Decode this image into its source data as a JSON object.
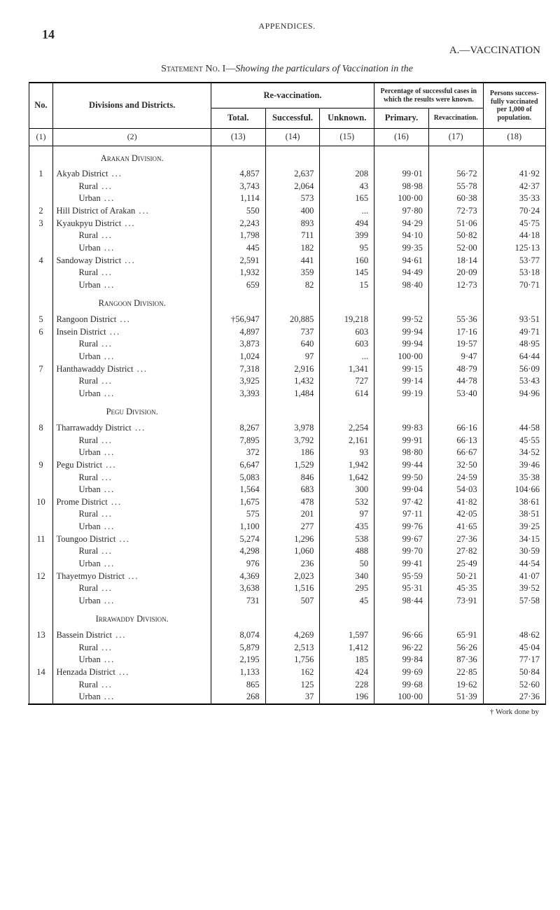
{
  "page_number": "14",
  "running_head": "APPENDICES.",
  "main_heading": "A.—VACCINATION",
  "statement_prefix": "Statement No. I—",
  "statement_italic": "Showing the particulars of Vaccination in the",
  "header": {
    "no": "No.",
    "divisions": "Divisions and Districts.",
    "revacc": "Re-vaccination.",
    "total": "Total.",
    "successful": "Successful.",
    "unknown": "Unknown.",
    "pct_group": "Percentage of suc­cessful cases in which the results were known.",
    "primary": "Primary.",
    "re_vacc": "Re­vaccina­tion.",
    "persons": "Persons success­fully vacci­nated per 1,000 of popula­tion."
  },
  "colnums": [
    "(1)",
    "(2)",
    "(13)",
    "(14)",
    "(15)",
    "(16)",
    "(17)",
    "(18)"
  ],
  "sections": [
    {
      "title": "Arakan Division.",
      "rows": [
        {
          "no": "1",
          "name": "Akyab District",
          "indent": 0,
          "c": [
            "4,857",
            "2,637",
            "208",
            "99·01",
            "56·72",
            "41·92"
          ]
        },
        {
          "no": "",
          "name": "Rural",
          "indent": 2,
          "c": [
            "3,743",
            "2,064",
            "43",
            "98·98",
            "55·78",
            "42·37"
          ]
        },
        {
          "no": "",
          "name": "Urban",
          "indent": 2,
          "c": [
            "1,114",
            "573",
            "165",
            "100·00",
            "60·38",
            "35·33"
          ]
        },
        {
          "no": "2",
          "name": "Hill District of Arakan",
          "indent": 0,
          "c": [
            "550",
            "400",
            "...",
            "97·80",
            "72·73",
            "70·24"
          ]
        },
        {
          "no": "3",
          "name": "Kyaukpyu District",
          "indent": 0,
          "c": [
            "2,243",
            "893",
            "494",
            "94·29",
            "51·06",
            "45·75"
          ]
        },
        {
          "no": "",
          "name": "Rural",
          "indent": 2,
          "c": [
            "1,798",
            "711",
            "399",
            "94·10",
            "50·82",
            "44·18"
          ]
        },
        {
          "no": "",
          "name": "Urban",
          "indent": 2,
          "c": [
            "445",
            "182",
            "95",
            "99·35",
            "52·00",
            "125·13"
          ]
        },
        {
          "no": "4",
          "name": "Sandoway District",
          "indent": 0,
          "c": [
            "2,591",
            "441",
            "160",
            "94·61",
            "18·14",
            "53·77"
          ]
        },
        {
          "no": "",
          "name": "Rural",
          "indent": 2,
          "c": [
            "1,932",
            "359",
            "145",
            "94·49",
            "20·09",
            "53·18"
          ]
        },
        {
          "no": "",
          "name": "Urban",
          "indent": 2,
          "c": [
            "659",
            "82",
            "15",
            "98·40",
            "12·73",
            "70·71"
          ]
        }
      ]
    },
    {
      "title": "Rangoon Division.",
      "rows": [
        {
          "no": "5",
          "name": "Rangoon District",
          "indent": 0,
          "c": [
            "†56,947",
            "20,885",
            "19,218",
            "99·52",
            "55·36",
            "93·51"
          ]
        },
        {
          "no": "6",
          "name": "Insein District",
          "indent": 0,
          "c": [
            "4,897",
            "737",
            "603",
            "99·94",
            "17·16",
            "49·71"
          ]
        },
        {
          "no": "",
          "name": "Rural",
          "indent": 2,
          "c": [
            "3,873",
            "640",
            "603",
            "99·94",
            "19·57",
            "48·95"
          ]
        },
        {
          "no": "",
          "name": "Urban",
          "indent": 2,
          "c": [
            "1,024",
            "97",
            "...",
            "100·00",
            "9·47",
            "64·44"
          ]
        },
        {
          "no": "7",
          "name": "Hanthawaddy District",
          "indent": 0,
          "c": [
            "7,318",
            "2,916",
            "1,341",
            "99·15",
            "48·79",
            "56·09"
          ]
        },
        {
          "no": "",
          "name": "Rural",
          "indent": 2,
          "c": [
            "3,925",
            "1,432",
            "727",
            "99·14",
            "44·78",
            "53·43"
          ]
        },
        {
          "no": "",
          "name": "Urban",
          "indent": 2,
          "c": [
            "3,393",
            "1,484",
            "614",
            "99·19",
            "53·40",
            "94·96"
          ]
        }
      ]
    },
    {
      "title": "Pegu Division.",
      "rows": [
        {
          "no": "8",
          "name": "Tharrawaddy District",
          "indent": 0,
          "c": [
            "8,267",
            "3,978",
            "2,254",
            "99·83",
            "66·16",
            "44·58"
          ]
        },
        {
          "no": "",
          "name": "Rural",
          "indent": 2,
          "c": [
            "7,895",
            "3,792",
            "2,161",
            "99·91",
            "66·13",
            "45·55"
          ]
        },
        {
          "no": "",
          "name": "Urban",
          "indent": 2,
          "c": [
            "372",
            "186",
            "93",
            "98·80",
            "66·67",
            "34·52"
          ]
        },
        {
          "no": "9",
          "name": "Pegu District",
          "indent": 0,
          "c": [
            "6,647",
            "1,529",
            "1,942",
            "99·44",
            "32·50",
            "39·46"
          ]
        },
        {
          "no": "",
          "name": "Rural",
          "indent": 2,
          "c": [
            "5,083",
            "846",
            "1,642",
            "99·50",
            "24·59",
            "35·38"
          ]
        },
        {
          "no": "",
          "name": "Urban",
          "indent": 2,
          "c": [
            "1,564",
            "683",
            "300",
            "99·04",
            "54·03",
            "104·66"
          ]
        },
        {
          "no": "10",
          "name": "Prome District",
          "indent": 0,
          "c": [
            "1,675",
            "478",
            "532",
            "97·42",
            "41·82",
            "38·61"
          ]
        },
        {
          "no": "",
          "name": "Rural",
          "indent": 2,
          "c": [
            "575",
            "201",
            "97",
            "97·11",
            "42·05",
            "38·51"
          ]
        },
        {
          "no": "",
          "name": "Urban",
          "indent": 2,
          "c": [
            "1,100",
            "277",
            "435",
            "99·76",
            "41·65",
            "39·25"
          ]
        },
        {
          "no": "11",
          "name": "Toungoo District",
          "indent": 0,
          "c": [
            "5,274",
            "1,296",
            "538",
            "99·67",
            "27·36",
            "34·15"
          ]
        },
        {
          "no": "",
          "name": "Rural",
          "indent": 2,
          "c": [
            "4,298",
            "1,060",
            "488",
            "99·70",
            "27·82",
            "30·59"
          ]
        },
        {
          "no": "",
          "name": "Urban",
          "indent": 2,
          "c": [
            "976",
            "236",
            "50",
            "99·41",
            "25·49",
            "44·54"
          ]
        },
        {
          "no": "12",
          "name": "Thayetmyo District",
          "indent": 0,
          "c": [
            "4,369",
            "2,023",
            "340",
            "95·59",
            "50·21",
            "41·07"
          ]
        },
        {
          "no": "",
          "name": "Rural",
          "indent": 2,
          "c": [
            "3,638",
            "1,516",
            "295",
            "95·31",
            "45·35",
            "39·52"
          ]
        },
        {
          "no": "",
          "name": "Urban",
          "indent": 2,
          "c": [
            "731",
            "507",
            "45",
            "98·44",
            "73·91",
            "57·58"
          ]
        }
      ]
    },
    {
      "title": "Irrawaddy Division.",
      "rows": [
        {
          "no": "13",
          "name": "Bassein District",
          "indent": 0,
          "c": [
            "8,074",
            "4,269",
            "1,597",
            "96·66",
            "65·91",
            "48·62"
          ]
        },
        {
          "no": "",
          "name": "Rural",
          "indent": 2,
          "c": [
            "5,879",
            "2,513",
            "1,412",
            "96·22",
            "56·26",
            "45·04"
          ]
        },
        {
          "no": "",
          "name": "Urban",
          "indent": 2,
          "c": [
            "2,195",
            "1,756",
            "185",
            "99·84",
            "87·36",
            "77·17"
          ]
        },
        {
          "no": "14",
          "name": "Henzada District",
          "indent": 0,
          "c": [
            "1,133",
            "162",
            "424",
            "99·69",
            "22·85",
            "50·84"
          ]
        },
        {
          "no": "",
          "name": "Rural",
          "indent": 2,
          "c": [
            "865",
            "125",
            "228",
            "99·68",
            "19·62",
            "52·60"
          ]
        },
        {
          "no": "",
          "name": "Urban",
          "indent": 2,
          "c": [
            "268",
            "37",
            "196",
            "100·00",
            "51·39",
            "27·36"
          ]
        }
      ]
    }
  ],
  "footnote": "† Work done by"
}
